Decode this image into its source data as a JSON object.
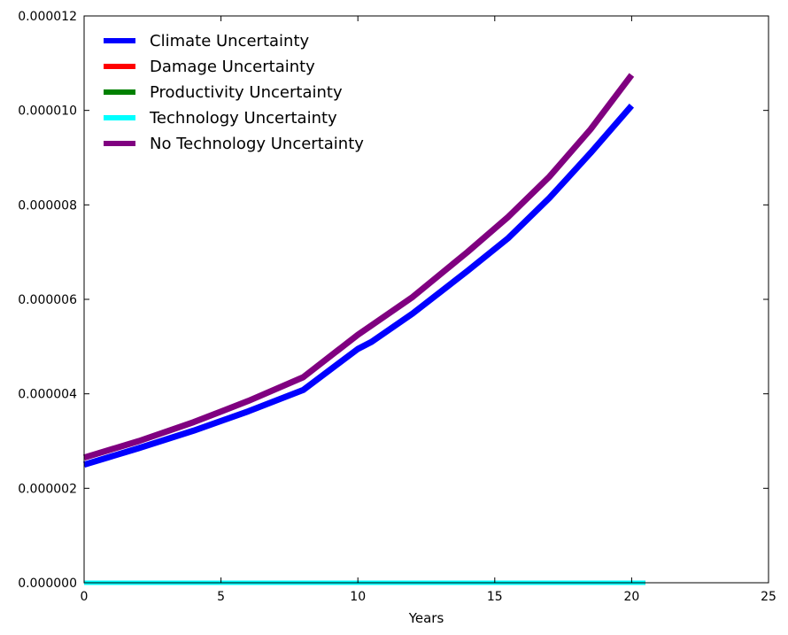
{
  "chart_data": {
    "type": "line",
    "title": "",
    "xlabel": "Years",
    "ylabel": "",
    "xlim": [
      0,
      25
    ],
    "ylim": [
      0,
      1.2e-05
    ],
    "xticks": [
      0,
      5,
      10,
      15,
      20,
      25
    ],
    "yticks": [
      0.0,
      2e-06,
      4e-06,
      6e-06,
      8e-06,
      1e-05,
      1.2e-05
    ],
    "xtick_labels": [
      "0",
      "5",
      "10",
      "15",
      "20",
      "25"
    ],
    "ytick_labels": [
      "0.000000",
      "0.000002",
      "0.000004",
      "0.000006",
      "0.000008",
      "0.000010",
      "0.000012"
    ],
    "grid": false,
    "legend_position": "top-left",
    "series": [
      {
        "name": "Climate Uncertainty",
        "color": "#0000ff",
        "x": [
          0,
          2,
          4,
          6,
          8,
          10,
          10.5,
          12,
          14,
          15.5,
          17,
          18.5,
          20
        ],
        "y": [
          2.5e-06,
          2.85e-06,
          3.22e-06,
          3.63e-06,
          4.08e-06,
          4.95e-06,
          5.1e-06,
          5.7e-06,
          6.6e-06,
          7.3e-06,
          8.15e-06,
          9.1e-06,
          1.01e-05
        ]
      },
      {
        "name": "Damage Uncertainty",
        "color": "#ff0000",
        "x": [
          0,
          20.5
        ],
        "y": [
          0,
          0
        ]
      },
      {
        "name": "Productivity Uncertainty",
        "color": "#008000",
        "x": [
          0,
          20.5
        ],
        "y": [
          0,
          0
        ]
      },
      {
        "name": "Technology Uncertainty",
        "color": "#00ffff",
        "x": [
          0,
          20.5
        ],
        "y": [
          0,
          0
        ]
      },
      {
        "name": "No Technology Uncertainty",
        "color": "#800080",
        "x": [
          0,
          2,
          4,
          6,
          8,
          10,
          10.5,
          12,
          14,
          15.5,
          17,
          18.5,
          20
        ],
        "y": [
          2.65e-06,
          3e-06,
          3.4e-06,
          3.85e-06,
          4.35e-06,
          5.25e-06,
          5.45e-06,
          6.05e-06,
          7e-06,
          7.75e-06,
          8.6e-06,
          9.6e-06,
          1.075e-05
        ]
      }
    ]
  }
}
